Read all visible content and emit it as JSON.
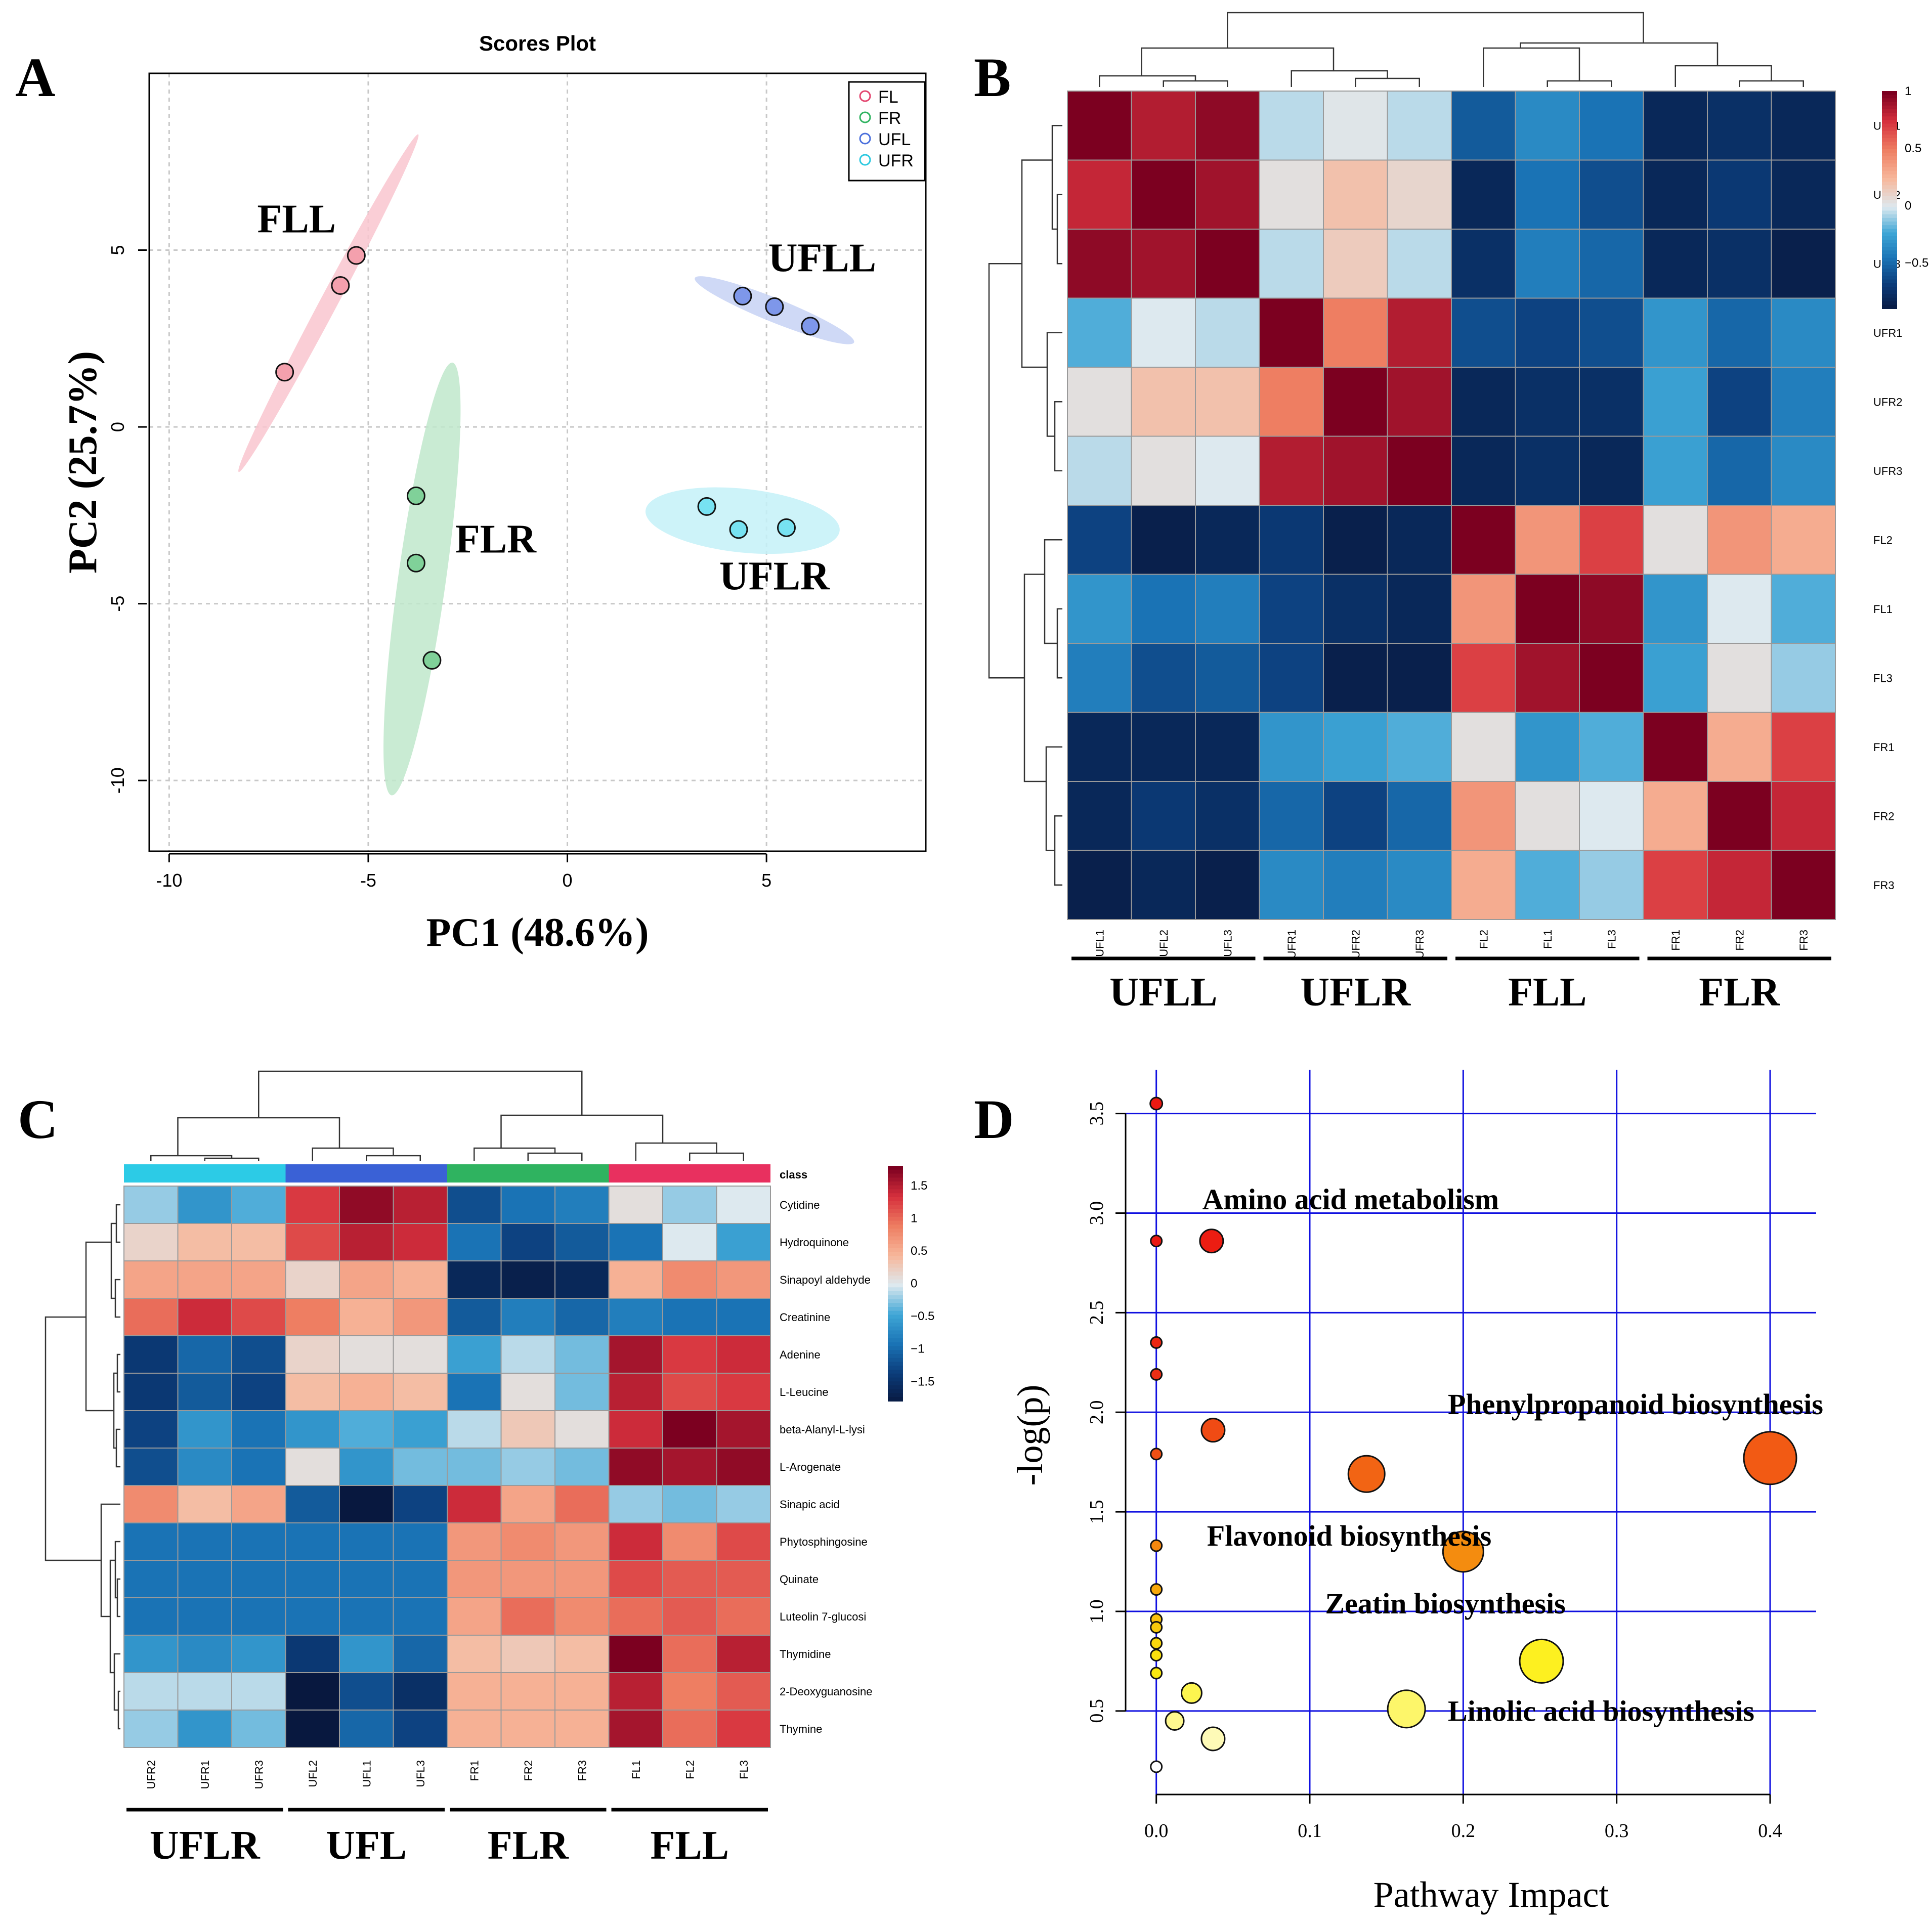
{
  "panels": {
    "A": {
      "letter": "A"
    },
    "B": {
      "letter": "B"
    },
    "C": {
      "letter": "C"
    },
    "D": {
      "letter": "D"
    }
  },
  "chart_data": [
    {
      "id": "A",
      "type": "scatter",
      "title": "Scores Plot",
      "xlabel": "PC1 (48.6%)",
      "ylabel": "PC2 (25.7%)",
      "xlim": [
        -10.5,
        9
      ],
      "ylim": [
        -12,
        10
      ],
      "xticks": [
        -10,
        -5,
        0,
        5
      ],
      "yticks": [
        -10,
        -5,
        0,
        5
      ],
      "legend": [
        "FL",
        "FR",
        "UFL",
        "UFR"
      ],
      "legend_position": "top-right",
      "colors": {
        "FL": "#e3446e",
        "FR": "#2fb360",
        "UFL": "#4a6fdc",
        "UFR": "#2cc9e0"
      },
      "fills": {
        "FL": "#f4a0ad",
        "FR": "#80d199",
        "UFL": "#7e97ea",
        "UFR": "#77e2f2"
      },
      "ellipse_fills": {
        "FL": "#f9c6cf",
        "FR": "#bfe8cb",
        "UFL": "#c7d2f5",
        "UFR": "#c4f1f8"
      },
      "series": [
        {
          "name": "FL",
          "points": [
            [
              -5.3,
              4.85
            ],
            [
              -5.7,
              4.0
            ],
            [
              -7.1,
              1.55
            ]
          ]
        },
        {
          "name": "FR",
          "points": [
            [
              -3.8,
              -1.95
            ],
            [
              -3.8,
              -3.85
            ],
            [
              -3.4,
              -6.6
            ]
          ]
        },
        {
          "name": "UFL",
          "points": [
            [
              4.4,
              3.7
            ],
            [
              5.2,
              3.4
            ],
            [
              6.1,
              2.85
            ]
          ]
        },
        {
          "name": "UFR",
          "points": [
            [
              3.5,
              -2.25
            ],
            [
              4.3,
              -2.9
            ],
            [
              5.5,
              -2.85
            ]
          ]
        }
      ],
      "ellipses": [
        {
          "name": "FL",
          "center": [
            -6.0,
            3.5
          ],
          "rx": 4.9,
          "ry": 0.22,
          "angle_deg": -62
        },
        {
          "name": "FR",
          "center": [
            -3.65,
            -4.3
          ],
          "rx": 5.6,
          "ry": 0.6,
          "angle_deg": -82
        },
        {
          "name": "UFL",
          "center": [
            5.2,
            3.3
          ],
          "rx": 2.2,
          "ry": 0.3,
          "angle_deg": 22
        },
        {
          "name": "UFR",
          "center": [
            4.4,
            -2.65
          ],
          "rx": 2.5,
          "ry": 0.8,
          "angle_deg": 6
        }
      ],
      "annotations": [
        {
          "text": "FLL",
          "x": -6.8,
          "y": 5.5
        },
        {
          "text": "UFLL",
          "x": 6.4,
          "y": 4.4
        },
        {
          "text": "FLR",
          "x": -1.8,
          "y": -3.55
        },
        {
          "text": "UFLR",
          "x": 5.2,
          "y": -4.6
        }
      ]
    },
    {
      "id": "B",
      "type": "heatmap",
      "rows": [
        "UFL1",
        "UFL2",
        "UFL3",
        "UFR1",
        "UFR2",
        "UFR3",
        "FL2",
        "FL1",
        "FL3",
        "FR1",
        "FR2",
        "FR3"
      ],
      "cols": [
        "UFL1",
        "UFL2",
        "UFL3",
        "UFR1",
        "UFR2",
        "UFR3",
        "FL2",
        "FL1",
        "FL3",
        "FR1",
        "FR2",
        "FR3"
      ],
      "values": [
        [
          1.0,
          0.85,
          0.95,
          -0.05,
          0.02,
          -0.05,
          -0.55,
          -0.35,
          -0.45,
          -0.8,
          -0.75,
          -0.8
        ],
        [
          0.8,
          1.0,
          0.9,
          0.05,
          0.2,
          0.1,
          -0.8,
          -0.45,
          -0.6,
          -0.8,
          -0.7,
          -0.8
        ],
        [
          0.95,
          0.9,
          1.0,
          -0.05,
          0.15,
          -0.05,
          -0.75,
          -0.4,
          -0.5,
          -0.8,
          -0.75,
          -0.85
        ],
        [
          -0.2,
          0.0,
          -0.05,
          1.0,
          0.5,
          0.85,
          -0.6,
          -0.65,
          -0.6,
          -0.3,
          -0.5,
          -0.35
        ],
        [
          0.05,
          0.2,
          0.2,
          0.5,
          1.0,
          0.9,
          -0.8,
          -0.75,
          -0.75,
          -0.25,
          -0.65,
          -0.4
        ],
        [
          -0.05,
          0.05,
          0.0,
          0.85,
          0.9,
          1.0,
          -0.8,
          -0.75,
          -0.8,
          -0.25,
          -0.5,
          -0.35
        ],
        [
          -0.65,
          -0.85,
          -0.8,
          -0.7,
          -0.85,
          -0.8,
          1.0,
          0.4,
          0.7,
          0.05,
          0.4,
          0.3
        ],
        [
          -0.3,
          -0.45,
          -0.4,
          -0.65,
          -0.75,
          -0.8,
          0.4,
          1.0,
          0.95,
          -0.3,
          0.0,
          -0.2
        ],
        [
          -0.4,
          -0.6,
          -0.55,
          -0.65,
          -0.85,
          -0.85,
          0.7,
          0.9,
          1.0,
          -0.25,
          0.05,
          -0.1
        ],
        [
          -0.8,
          -0.8,
          -0.8,
          -0.3,
          -0.25,
          -0.2,
          0.05,
          -0.3,
          -0.2,
          1.0,
          0.3,
          0.7
        ],
        [
          -0.8,
          -0.7,
          -0.75,
          -0.5,
          -0.65,
          -0.5,
          0.4,
          0.05,
          0.0,
          0.3,
          1.0,
          0.8
        ],
        [
          -0.85,
          -0.8,
          -0.85,
          -0.35,
          -0.4,
          -0.35,
          0.3,
          -0.2,
          -0.1,
          0.7,
          0.8,
          1.0
        ]
      ],
      "scale": {
        "ticks": [
          "1",
          "0.5",
          "0",
          "−0.5"
        ],
        "min": -0.9,
        "max": 1.0
      },
      "groups": [
        "UFLL",
        "UFLR",
        "FLL",
        "FLR"
      ]
    },
    {
      "id": "C",
      "type": "heatmap",
      "class_label": "class",
      "class_colors": [
        "#2ccbe6",
        "#3a61d6",
        "#2fb360",
        "#e8305f"
      ],
      "rows": [
        "Cytidine",
        "Hydroquinone",
        "Sinapoyl aldehyde",
        "Creatinine",
        "Adenine",
        "L-Leucine",
        "beta-Alanyl-L-lysi",
        "L-Arogenate",
        "Sinapic acid",
        "Phytosphingosine",
        "Quinate",
        "Luteolin 7-glucosi",
        "Thymidine",
        "2-Deoxyguanosine",
        "Thymine"
      ],
      "cols": [
        "UFR2",
        "UFR1",
        "UFR3",
        "UFL2",
        "UFL1",
        "UFL3",
        "FR1",
        "FR2",
        "FR3",
        "FL1",
        "FL2",
        "FL3"
      ],
      "values": [
        [
          -0.2,
          -0.6,
          -0.4,
          1.3,
          1.7,
          1.5,
          -1.2,
          -0.9,
          -0.8,
          0.1,
          -0.2,
          0.0
        ],
        [
          0.2,
          0.4,
          0.4,
          1.2,
          1.5,
          1.4,
          -0.9,
          -1.3,
          -1.1,
          -0.9,
          0.0,
          -0.5
        ],
        [
          0.6,
          0.6,
          0.6,
          0.2,
          0.6,
          0.5,
          -1.6,
          -1.7,
          -1.6,
          0.5,
          0.8,
          0.7
        ],
        [
          1.0,
          1.4,
          1.2,
          0.9,
          0.5,
          0.7,
          -1.1,
          -0.8,
          -1.0,
          -0.8,
          -0.9,
          -0.9
        ],
        [
          -1.4,
          -1.0,
          -1.2,
          0.2,
          0.1,
          0.1,
          -0.5,
          -0.1,
          -0.3,
          1.6,
          1.3,
          1.4
        ],
        [
          -1.4,
          -1.1,
          -1.3,
          0.4,
          0.5,
          0.4,
          -0.9,
          0.1,
          -0.3,
          1.5,
          1.2,
          1.3
        ],
        [
          -1.3,
          -0.6,
          -0.9,
          -0.6,
          -0.4,
          -0.5,
          -0.1,
          0.3,
          0.1,
          1.4,
          1.8,
          1.6
        ],
        [
          -1.2,
          -0.7,
          -0.9,
          0.1,
          -0.6,
          -0.3,
          -0.3,
          -0.2,
          -0.3,
          1.7,
          1.6,
          1.7
        ],
        [
          0.8,
          0.4,
          0.6,
          -1.1,
          -1.8,
          -1.3,
          1.4,
          0.6,
          1.0,
          -0.2,
          -0.3,
          -0.2
        ],
        [
          -0.9,
          -0.9,
          -0.9,
          -0.9,
          -0.9,
          -0.9,
          0.7,
          0.8,
          0.7,
          1.4,
          0.8,
          1.2
        ],
        [
          -0.9,
          -0.9,
          -0.9,
          -0.9,
          -0.9,
          -0.9,
          0.7,
          0.7,
          0.7,
          1.2,
          1.1,
          1.1
        ],
        [
          -0.9,
          -0.9,
          -0.9,
          -0.9,
          -0.9,
          -0.9,
          0.6,
          1.0,
          0.8,
          1.0,
          1.1,
          1.0
        ],
        [
          -0.6,
          -0.7,
          -0.6,
          -1.4,
          -0.6,
          -1.0,
          0.4,
          0.3,
          0.4,
          1.8,
          1.0,
          1.5
        ],
        [
          -0.1,
          -0.1,
          -0.1,
          -1.8,
          -1.2,
          -1.5,
          0.5,
          0.5,
          0.5,
          1.5,
          0.9,
          1.1
        ],
        [
          -0.2,
          -0.6,
          -0.3,
          -1.8,
          -1.0,
          -1.3,
          0.5,
          0.5,
          0.5,
          1.6,
          1.0,
          1.3
        ]
      ],
      "scale": {
        "ticks": [
          "1.5",
          "1",
          "0.5",
          "0",
          "−0.5",
          "−1",
          "−1.5"
        ],
        "min": -1.8,
        "max": 1.8
      },
      "groups": [
        "UFLR",
        "UFL",
        "FLR",
        "FLL"
      ]
    },
    {
      "id": "D",
      "type": "scatter",
      "xlabel": "Pathway Impact",
      "ylabel": "-log(p)",
      "xlim": [
        -0.02,
        0.43
      ],
      "ylim": [
        0.05,
        3.72
      ],
      "xticks": [
        "0.0",
        "0.1",
        "0.2",
        "0.3",
        "0.4"
      ],
      "yticks": [
        "0.5",
        "1.0",
        "1.5",
        "2.0",
        "2.5",
        "3.0",
        "3.5"
      ],
      "xgrid": [
        0.0,
        0.1,
        0.2,
        0.3,
        0.4
      ],
      "ygrid": [
        0.5,
        1.0,
        1.5,
        2.0,
        2.5,
        3.0,
        3.5
      ],
      "points": [
        {
          "x": 0.0,
          "y": 3.55,
          "r": 12,
          "c": "#ea1a12"
        },
        {
          "x": 0.0,
          "y": 2.86,
          "r": 11,
          "c": "#ea1a12"
        },
        {
          "x": 0.036,
          "y": 2.86,
          "r": 23,
          "c": "#ec1d12"
        },
        {
          "x": 0.0,
          "y": 2.35,
          "r": 11,
          "c": "#ec2613"
        },
        {
          "x": 0.0,
          "y": 2.19,
          "r": 11,
          "c": "#ec2e14"
        },
        {
          "x": 0.037,
          "y": 1.91,
          "r": 23,
          "c": "#f04b14"
        },
        {
          "x": 0.0,
          "y": 1.79,
          "r": 11,
          "c": "#f15014"
        },
        {
          "x": 0.137,
          "y": 1.69,
          "r": 36,
          "c": "#f26414"
        },
        {
          "x": 0.4,
          "y": 1.77,
          "r": 52,
          "c": "#f25a14"
        },
        {
          "x": 0.0,
          "y": 1.33,
          "r": 11,
          "c": "#f4880f"
        },
        {
          "x": 0.2,
          "y": 1.3,
          "r": 40,
          "c": "#f48c0f"
        },
        {
          "x": 0.0,
          "y": 1.11,
          "r": 11,
          "c": "#f7a80c"
        },
        {
          "x": 0.0,
          "y": 0.96,
          "r": 11,
          "c": "#f9c10c"
        },
        {
          "x": 0.0,
          "y": 0.92,
          "r": 11,
          "c": "#f9c90c"
        },
        {
          "x": 0.0,
          "y": 0.84,
          "r": 11,
          "c": "#fbd80d"
        },
        {
          "x": 0.0,
          "y": 0.78,
          "r": 11,
          "c": "#fbe00e"
        },
        {
          "x": 0.0,
          "y": 0.69,
          "r": 11,
          "c": "#fbe90f"
        },
        {
          "x": 0.251,
          "y": 0.75,
          "r": 43,
          "c": "#fdf020"
        },
        {
          "x": 0.023,
          "y": 0.59,
          "r": 20,
          "c": "#fdf54f"
        },
        {
          "x": 0.163,
          "y": 0.51,
          "r": 37,
          "c": "#fdf66a"
        },
        {
          "x": 0.012,
          "y": 0.45,
          "r": 18,
          "c": "#fef88f"
        },
        {
          "x": 0.037,
          "y": 0.36,
          "r": 23,
          "c": "#fefab7"
        },
        {
          "x": 0.0,
          "y": 0.22,
          "r": 11,
          "c": "#ffffff"
        }
      ],
      "annotations": [
        {
          "text": "Amino acid metabolism",
          "x": 0.03,
          "y": 3.02
        },
        {
          "text": "Phenylpropanoid biosynthesis",
          "x": 0.19,
          "y": 1.99
        },
        {
          "text": "Flavonoid biosynthesis",
          "x": 0.033,
          "y": 1.33
        },
        {
          "text": "Zeatin biosynthesis",
          "x": 0.11,
          "y": 0.99
        },
        {
          "text": "Linolic acid biosynthesis",
          "x": 0.19,
          "y": 0.45
        }
      ]
    }
  ]
}
